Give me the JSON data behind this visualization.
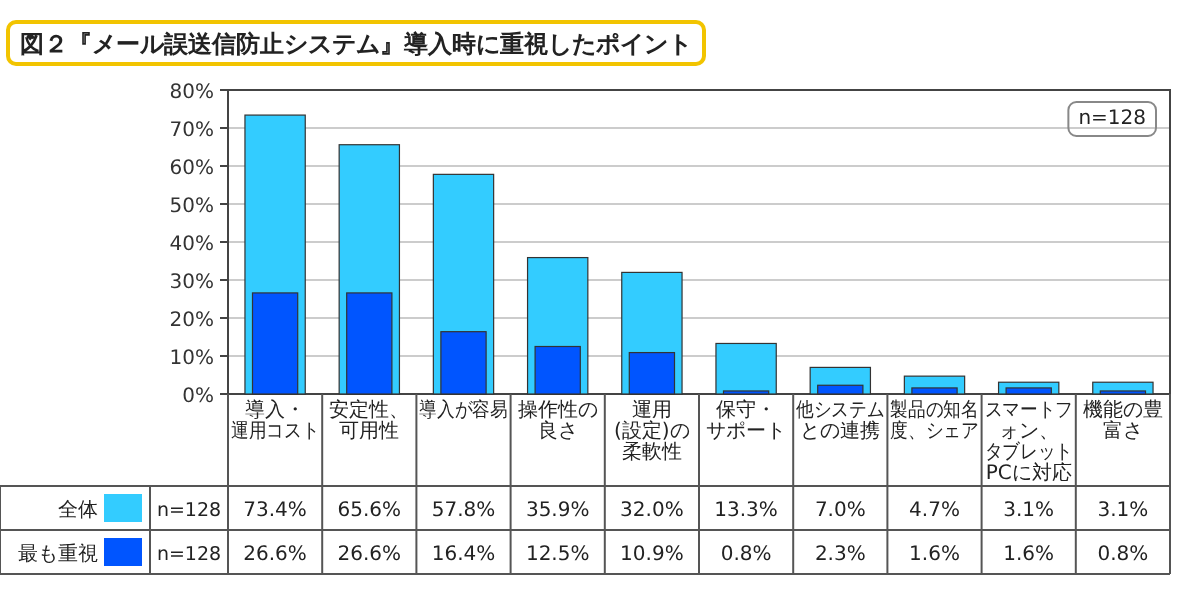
{
  "chart_data": {
    "type": "bar",
    "title": "図２『メール誤送信防止システム』導入時に重視したポイント",
    "categories": [
      "導入・運用コスト",
      "安定性、可用性",
      "導入が容易",
      "操作性の良さ",
      "運用(設定)の柔軟性",
      "保守・サポート",
      "他システムとの連携",
      "製品の知名度、シェア",
      "スマートフォン、タブレットPCに対応",
      "機能の豊富さ"
    ],
    "series": [
      {
        "name": "全体",
        "color": "#33ccff",
        "values": [
          73.4,
          65.6,
          57.8,
          35.9,
          32.0,
          13.3,
          7.0,
          4.7,
          3.1,
          3.1
        ],
        "value_labels": [
          "73.4%",
          "65.6%",
          "57.8%",
          "35.9%",
          "32.0%",
          "13.3%",
          "7.0%",
          "4.7%",
          "3.1%",
          "3.1%"
        ]
      },
      {
        "name": "最も重視",
        "color": "#0055ff",
        "values": [
          26.6,
          26.6,
          16.4,
          12.5,
          10.9,
          0.8,
          2.3,
          1.6,
          1.6,
          0.8
        ],
        "value_labels": [
          "26.6%",
          "26.6%",
          "16.4%",
          "12.5%",
          "10.9%",
          "0.8%",
          "2.3%",
          "1.6%",
          "1.6%",
          "0.8%"
        ]
      }
    ],
    "ylim": [
      0,
      80
    ],
    "yticks": [
      {
        "value": 0,
        "label": "0%"
      },
      {
        "value": 10,
        "label": "10%"
      },
      {
        "value": 20,
        "label": "20%"
      },
      {
        "value": 30,
        "label": "30%"
      },
      {
        "value": 40,
        "label": "40%"
      },
      {
        "value": 50,
        "label": "50%"
      },
      {
        "value": 60,
        "label": "60%"
      },
      {
        "value": 70,
        "label": "70%"
      },
      {
        "value": 80,
        "label": "80%"
      }
    ],
    "grid": "y",
    "legend": "bottom",
    "annotations": [
      "n=128",
      "n=128",
      "n=128"
    ]
  }
}
